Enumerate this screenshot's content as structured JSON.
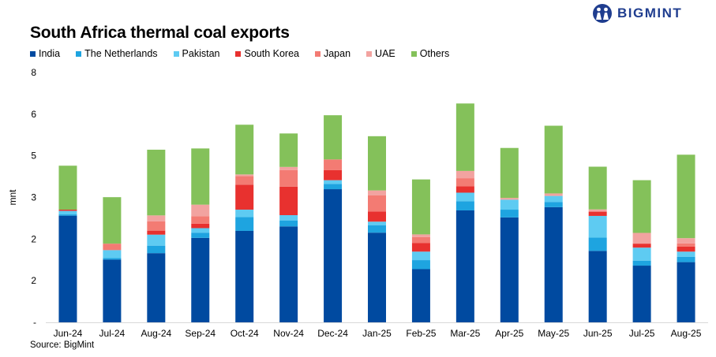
{
  "header": {
    "title": "South Africa thermal coal exports",
    "brand": "BIGMINT"
  },
  "footer": {
    "source": "Source: BigMint"
  },
  "chart_data": {
    "type": "stacked-bar",
    "title": "South Africa thermal coal exports",
    "xlabel": "",
    "ylabel": "mnt",
    "y_tick_labels": [
      "-",
      "2",
      "2",
      "3",
      "5",
      "6",
      "8"
    ],
    "categories": [
      "Jun-24",
      "Jul-24",
      "Aug-24",
      "Sep-24",
      "Oct-24",
      "Nov-24",
      "Dec-24",
      "Jan-25",
      "Feb-25",
      "Mar-25",
      "Apr-25",
      "May-25",
      "Jun-25",
      "Jul-25",
      "Aug-25"
    ],
    "series": [
      {
        "name": "India",
        "color": "#004aa0",
        "values": [
          4.27,
          2.51,
          2.77,
          3.38,
          3.66,
          3.84,
          5.33,
          3.59,
          2.13,
          4.48,
          4.2,
          4.61,
          2.86,
          2.27,
          2.41
        ]
      },
      {
        "name": "The Netherlands",
        "color": "#1ea4e0",
        "values": [
          0.05,
          0.06,
          0.3,
          0.21,
          0.55,
          0.24,
          0.21,
          0.3,
          0.36,
          0.37,
          0.31,
          0.21,
          0.53,
          0.2,
          0.21
        ]
      },
      {
        "name": "Pakistan",
        "color": "#5ecbf2",
        "values": [
          0.14,
          0.32,
          0.44,
          0.18,
          0.3,
          0.21,
          0.15,
          0.14,
          0.34,
          0.34,
          0.4,
          0.24,
          0.87,
          0.52,
          0.21
        ]
      },
      {
        "name": "South Korea",
        "color": "#e8312f",
        "values": [
          0.05,
          0.0,
          0.16,
          0.18,
          1.0,
          1.14,
          0.4,
          0.41,
          0.34,
          0.26,
          0.0,
          0.0,
          0.17,
          0.16,
          0.2
        ]
      },
      {
        "name": "Japan",
        "color": "#f37b73",
        "values": [
          0.0,
          0.26,
          0.37,
          0.3,
          0.34,
          0.66,
          0.43,
          0.64,
          0.24,
          0.32,
          0.0,
          0.0,
          0.0,
          0.0,
          0.13
        ]
      },
      {
        "name": "UAE",
        "color": "#f2a3a0",
        "values": [
          0.0,
          0.0,
          0.24,
          0.46,
          0.07,
          0.13,
          0.0,
          0.2,
          0.11,
          0.29,
          0.07,
          0.1,
          0.09,
          0.43,
          0.21
        ]
      },
      {
        "name": "Others",
        "color": "#84c15a",
        "values": [
          1.76,
          1.86,
          2.63,
          2.25,
          1.99,
          1.34,
          1.77,
          2.17,
          2.2,
          2.7,
          2.0,
          2.71,
          1.71,
          2.11,
          3.34
        ]
      }
    ],
    "ylim": [
      0,
      10
    ],
    "grid": false,
    "legend_position": "top-left"
  }
}
